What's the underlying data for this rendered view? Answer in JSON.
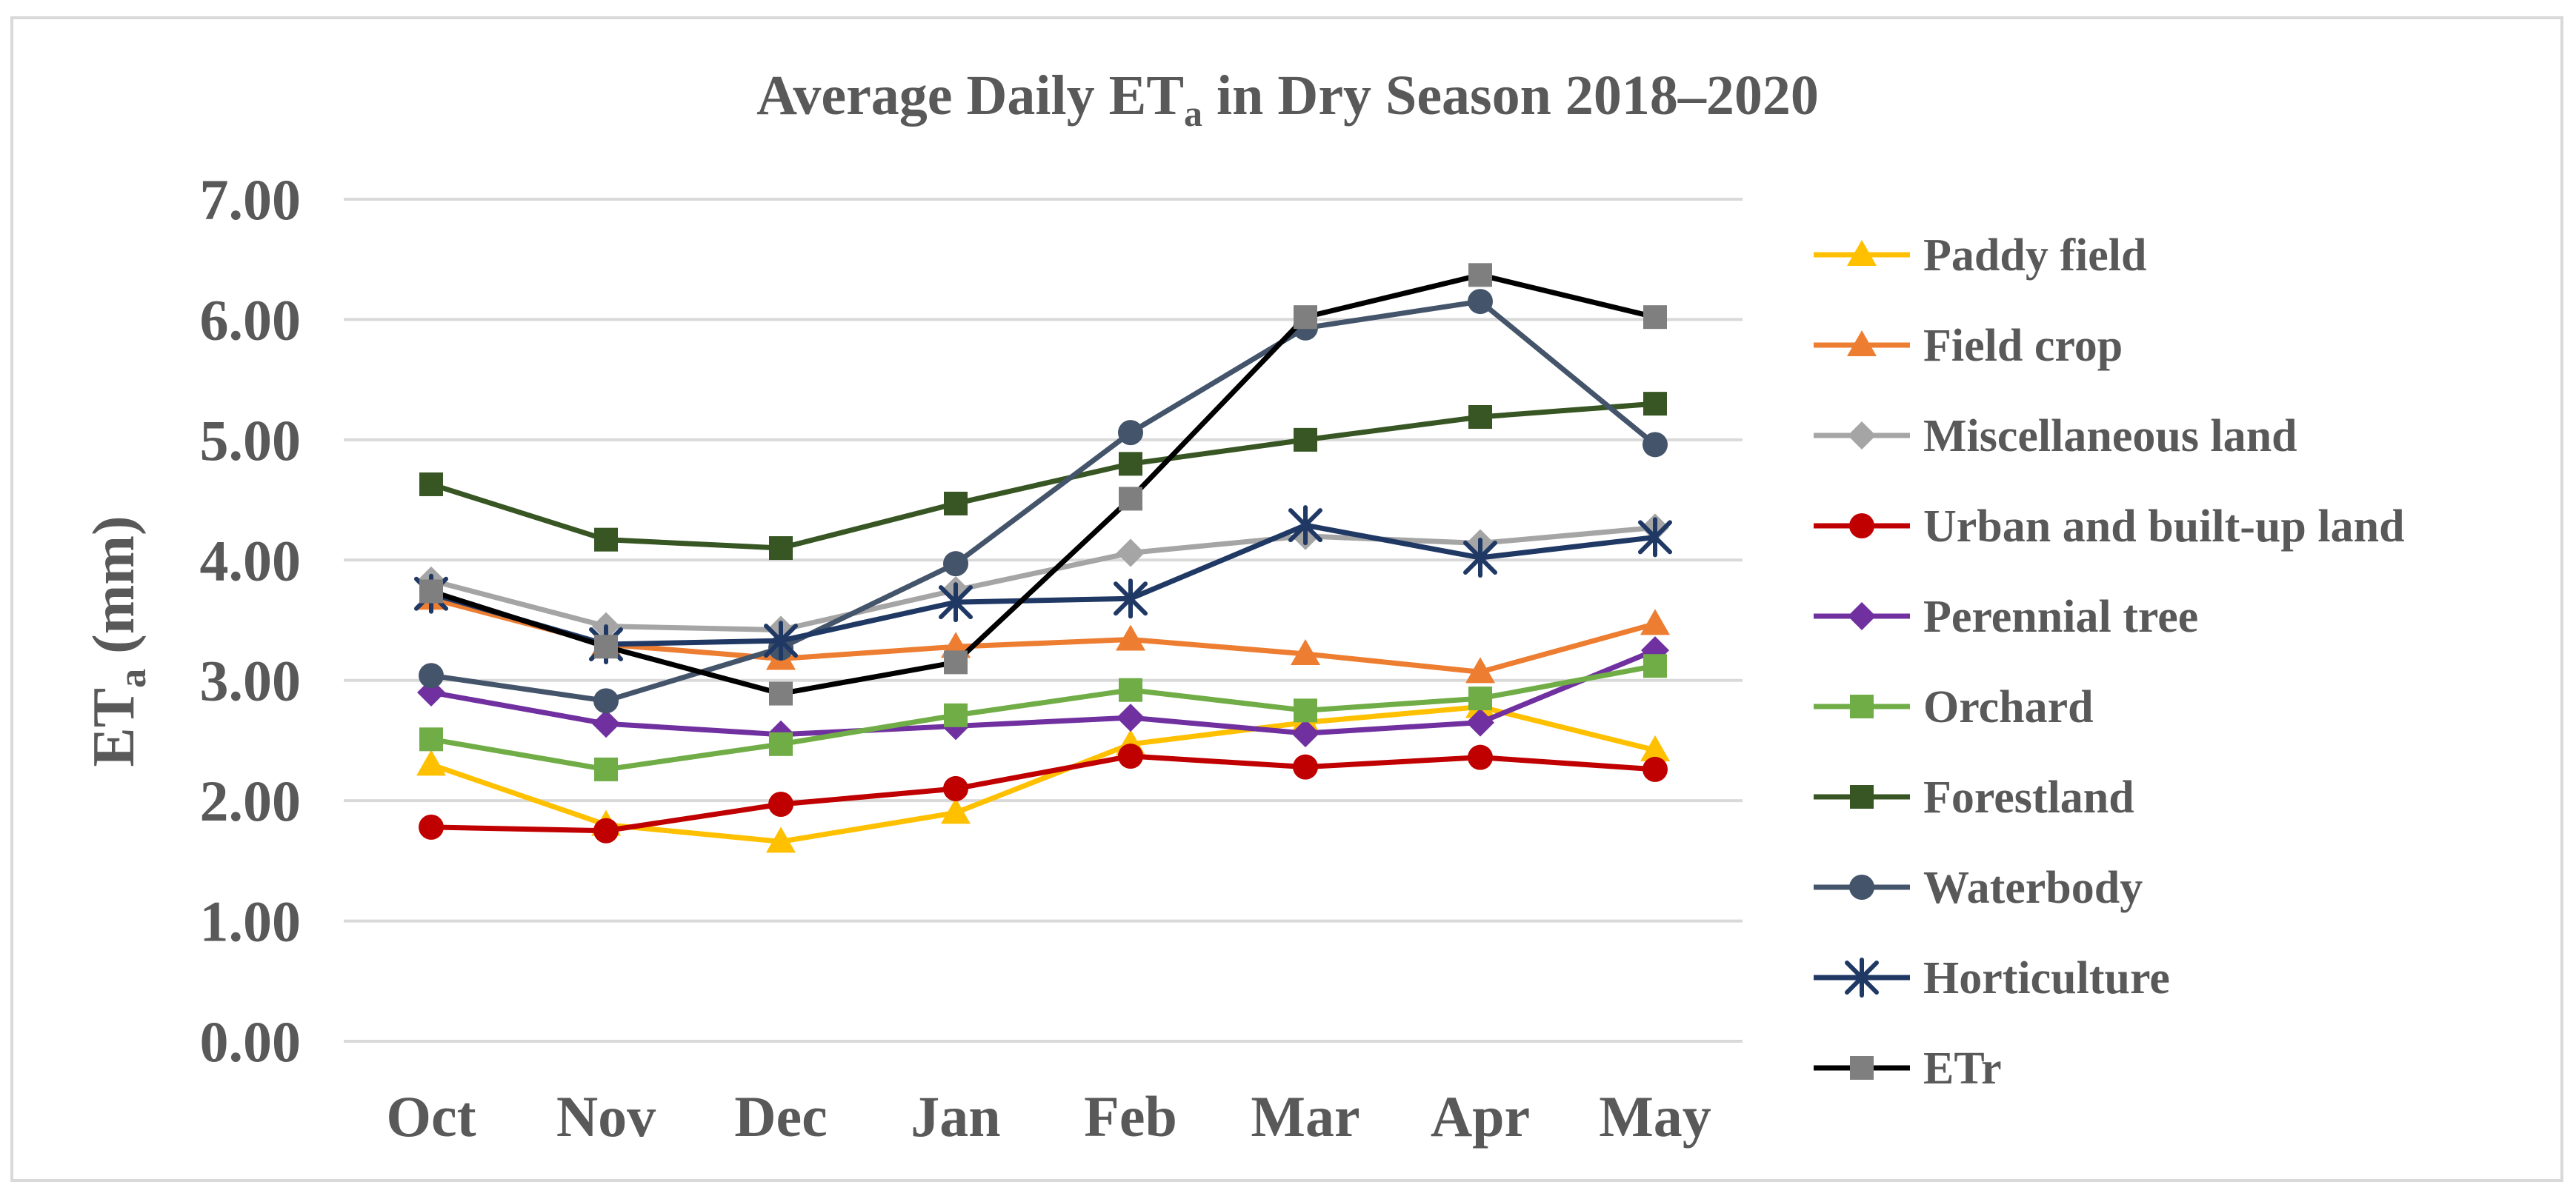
{
  "chart_data": {
    "type": "line",
    "title_main": "Average Daily ET",
    "title_sub": "a",
    "title_rest": " in Dry Season 2018–2020",
    "ylabel_main": "ET",
    "ylabel_sub": "a",
    "ylabel_rest": " (mm)",
    "xlabel": "",
    "ylim": [
      0,
      7
    ],
    "yticks": [
      "0.00",
      "1.00",
      "2.00",
      "3.00",
      "4.00",
      "5.00",
      "6.00",
      "7.00"
    ],
    "grid": true,
    "legend_position": "right",
    "categories": [
      "Oct",
      "Nov",
      "Dec",
      "Jan",
      "Feb",
      "Mar",
      "Apr",
      "May"
    ],
    "series": [
      {
        "name": "Paddy field",
        "color": "#FFC000",
        "marker": "triangle",
        "values": [
          2.3,
          1.8,
          1.66,
          1.9,
          2.47,
          2.65,
          2.78,
          2.42
        ]
      },
      {
        "name": "Field crop",
        "color": "#ED7D31",
        "marker": "triangle",
        "values": [
          3.68,
          3.3,
          3.18,
          3.28,
          3.34,
          3.22,
          3.07,
          3.47
        ]
      },
      {
        "name": "Miscellaneous land",
        "color": "#A5A5A5",
        "marker": "diamond",
        "values": [
          3.83,
          3.45,
          3.42,
          3.75,
          4.06,
          4.2,
          4.14,
          4.27
        ]
      },
      {
        "name": "Urban and built-up land",
        "color": "#C00000",
        "marker": "circle",
        "values": [
          1.78,
          1.75,
          1.97,
          2.1,
          2.37,
          2.28,
          2.36,
          2.26
        ]
      },
      {
        "name": "Perennial tree",
        "color": "#7030A0",
        "marker": "diamond",
        "values": [
          2.9,
          2.64,
          2.55,
          2.62,
          2.69,
          2.56,
          2.65,
          3.25
        ]
      },
      {
        "name": "Orchard",
        "color": "#70AD47",
        "marker": "square",
        "values": [
          2.51,
          2.26,
          2.47,
          2.71,
          2.92,
          2.75,
          2.85,
          3.12
        ]
      },
      {
        "name": "Forestland",
        "color": "#375623",
        "marker": "square",
        "values": [
          4.63,
          4.17,
          4.1,
          4.47,
          4.8,
          5.0,
          5.19,
          5.3
        ]
      },
      {
        "name": "Waterbody",
        "color": "#44546A",
        "marker": "circle",
        "values": [
          3.04,
          2.83,
          3.27,
          3.97,
          5.06,
          5.93,
          6.15,
          4.96
        ]
      },
      {
        "name": "Horticulture",
        "color": "#1F3864",
        "marker": "star",
        "values": [
          3.72,
          3.3,
          3.33,
          3.65,
          3.68,
          4.29,
          4.02,
          4.19
        ]
      },
      {
        "name": "ETr",
        "color": "#000000",
        "marker": "square-gray",
        "values": [
          3.74,
          3.28,
          2.89,
          3.15,
          4.51,
          6.02,
          6.37,
          6.02
        ]
      }
    ]
  }
}
